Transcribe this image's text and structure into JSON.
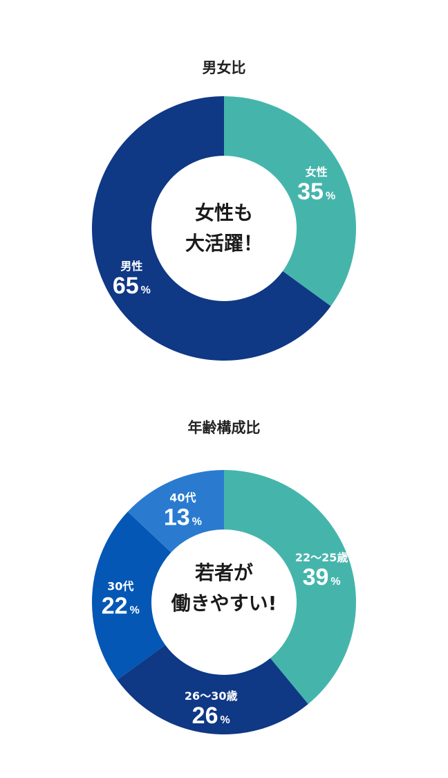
{
  "chart_data": [
    {
      "type": "pie",
      "title": "男女比",
      "center_label": [
        "女性も",
        "大活躍！"
      ],
      "slices": [
        {
          "label": "女性",
          "value": 35,
          "unit": "%",
          "color": "#45b5ac"
        },
        {
          "label": "男性",
          "value": 65,
          "unit": "%",
          "color": "#0f3885"
        }
      ]
    },
    {
      "type": "pie",
      "title": "年齢構成比",
      "center_label": [
        "若者が",
        "働きやすい!"
      ],
      "slices": [
        {
          "label": "22～25歳",
          "value": 39,
          "unit": "%",
          "color": "#45b5ac"
        },
        {
          "label": "26～30歳",
          "value": 26,
          "unit": "%",
          "color": "#0f3885"
        },
        {
          "label": "30代",
          "value": 22,
          "unit": "%",
          "color": "#0457b4"
        },
        {
          "label": "40代",
          "value": 13,
          "unit": "%",
          "color": "#2a7bd0"
        }
      ]
    }
  ]
}
